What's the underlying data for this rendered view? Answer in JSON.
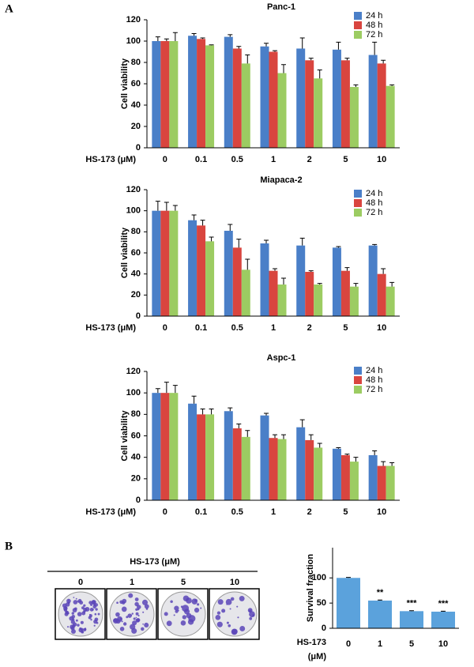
{
  "panels": [
    "A",
    "B"
  ],
  "colony_assay": {
    "title": "HS-173 (μM)",
    "doses": [
      "0",
      "1",
      "5",
      "10"
    ]
  },
  "chart_data": [
    {
      "type": "bar",
      "title": "Panc-1",
      "xlabel": "HS-173 (μM)",
      "ylabel": "Cell viability",
      "categories": [
        "0",
        "0.1",
        "0.5",
        "1",
        "2",
        "5",
        "10"
      ],
      "ylim": [
        0,
        120
      ],
      "yticks": [
        0,
        20,
        40,
        60,
        80,
        100,
        120
      ],
      "legend": "top-right",
      "series": [
        {
          "name": "24 h",
          "color": "#4a7fc8",
          "values": [
            100,
            105,
            104,
            95,
            93,
            92,
            87
          ],
          "errors": [
            4,
            2,
            2,
            3,
            10,
            7,
            12
          ]
        },
        {
          "name": "48 h",
          "color": "#d9453f",
          "values": [
            100,
            102,
            93,
            90,
            82,
            82,
            79
          ],
          "errors": [
            2,
            1,
            2,
            1,
            2,
            2,
            3
          ]
        },
        {
          "name": "72 h",
          "color": "#9ccc62",
          "values": [
            100,
            96,
            79,
            70,
            65,
            57,
            58
          ],
          "errors": [
            8,
            0.5,
            8,
            8,
            8,
            2,
            1
          ]
        }
      ]
    },
    {
      "type": "bar",
      "title": "Miapaca-2",
      "xlabel": "HS-173 (μM)",
      "ylabel": "Cell viability",
      "categories": [
        "0",
        "0.1",
        "0.5",
        "1",
        "2",
        "5",
        "10"
      ],
      "ylim": [
        0,
        120
      ],
      "yticks": [
        0,
        20,
        40,
        60,
        80,
        100,
        120
      ],
      "legend": "top-right",
      "series": [
        {
          "name": "24 h",
          "color": "#4a7fc8",
          "values": [
            100,
            91,
            81,
            69,
            67,
            65,
            67
          ],
          "errors": [
            9,
            5,
            6,
            3,
            7,
            1,
            1
          ]
        },
        {
          "name": "48 h",
          "color": "#d9453f",
          "values": [
            100,
            86,
            65,
            43,
            42,
            43,
            40
          ],
          "errors": [
            8,
            5,
            8,
            2,
            1,
            3,
            5
          ]
        },
        {
          "name": "72 h",
          "color": "#9ccc62",
          "values": [
            100,
            71,
            44,
            30,
            30,
            28,
            28
          ],
          "errors": [
            5,
            4,
            10,
            6,
            1,
            3,
            4
          ]
        }
      ]
    },
    {
      "type": "bar",
      "title": "Aspc-1",
      "xlabel": "HS-173 (μM)",
      "ylabel": "Cell viability",
      "categories": [
        "0",
        "0.1",
        "0.5",
        "1",
        "2",
        "5",
        "10"
      ],
      "ylim": [
        0,
        120
      ],
      "yticks": [
        0,
        20,
        40,
        60,
        80,
        100,
        120
      ],
      "legend": "top-right",
      "series": [
        {
          "name": "24 h",
          "color": "#4a7fc8",
          "values": [
            100,
            90,
            83,
            79,
            68,
            48,
            42
          ],
          "errors": [
            4,
            7,
            3,
            2,
            7,
            1,
            4
          ]
        },
        {
          "name": "48 h",
          "color": "#d9453f",
          "values": [
            100,
            80,
            67,
            58,
            56,
            42,
            32
          ],
          "errors": [
            10,
            5,
            4,
            3,
            5,
            1,
            4
          ]
        },
        {
          "name": "72 h",
          "color": "#9ccc62",
          "values": [
            100,
            80,
            59,
            57,
            49,
            36,
            32
          ],
          "errors": [
            7,
            5,
            6,
            4,
            4,
            4,
            3
          ]
        }
      ]
    },
    {
      "type": "bar",
      "ylabel": "Survival fraction",
      "xlabel_lines": [
        "HS-173",
        "(μM)"
      ],
      "categories": [
        "0",
        "1",
        "5",
        "10"
      ],
      "ylim": [
        0,
        160
      ],
      "yticks": [
        0,
        50,
        100
      ],
      "color": "#5ba2dc",
      "values": [
        100,
        55,
        34,
        33
      ],
      "errors": [
        1,
        1,
        1,
        1
      ],
      "annotations": [
        null,
        "**",
        "***",
        "***"
      ]
    }
  ]
}
